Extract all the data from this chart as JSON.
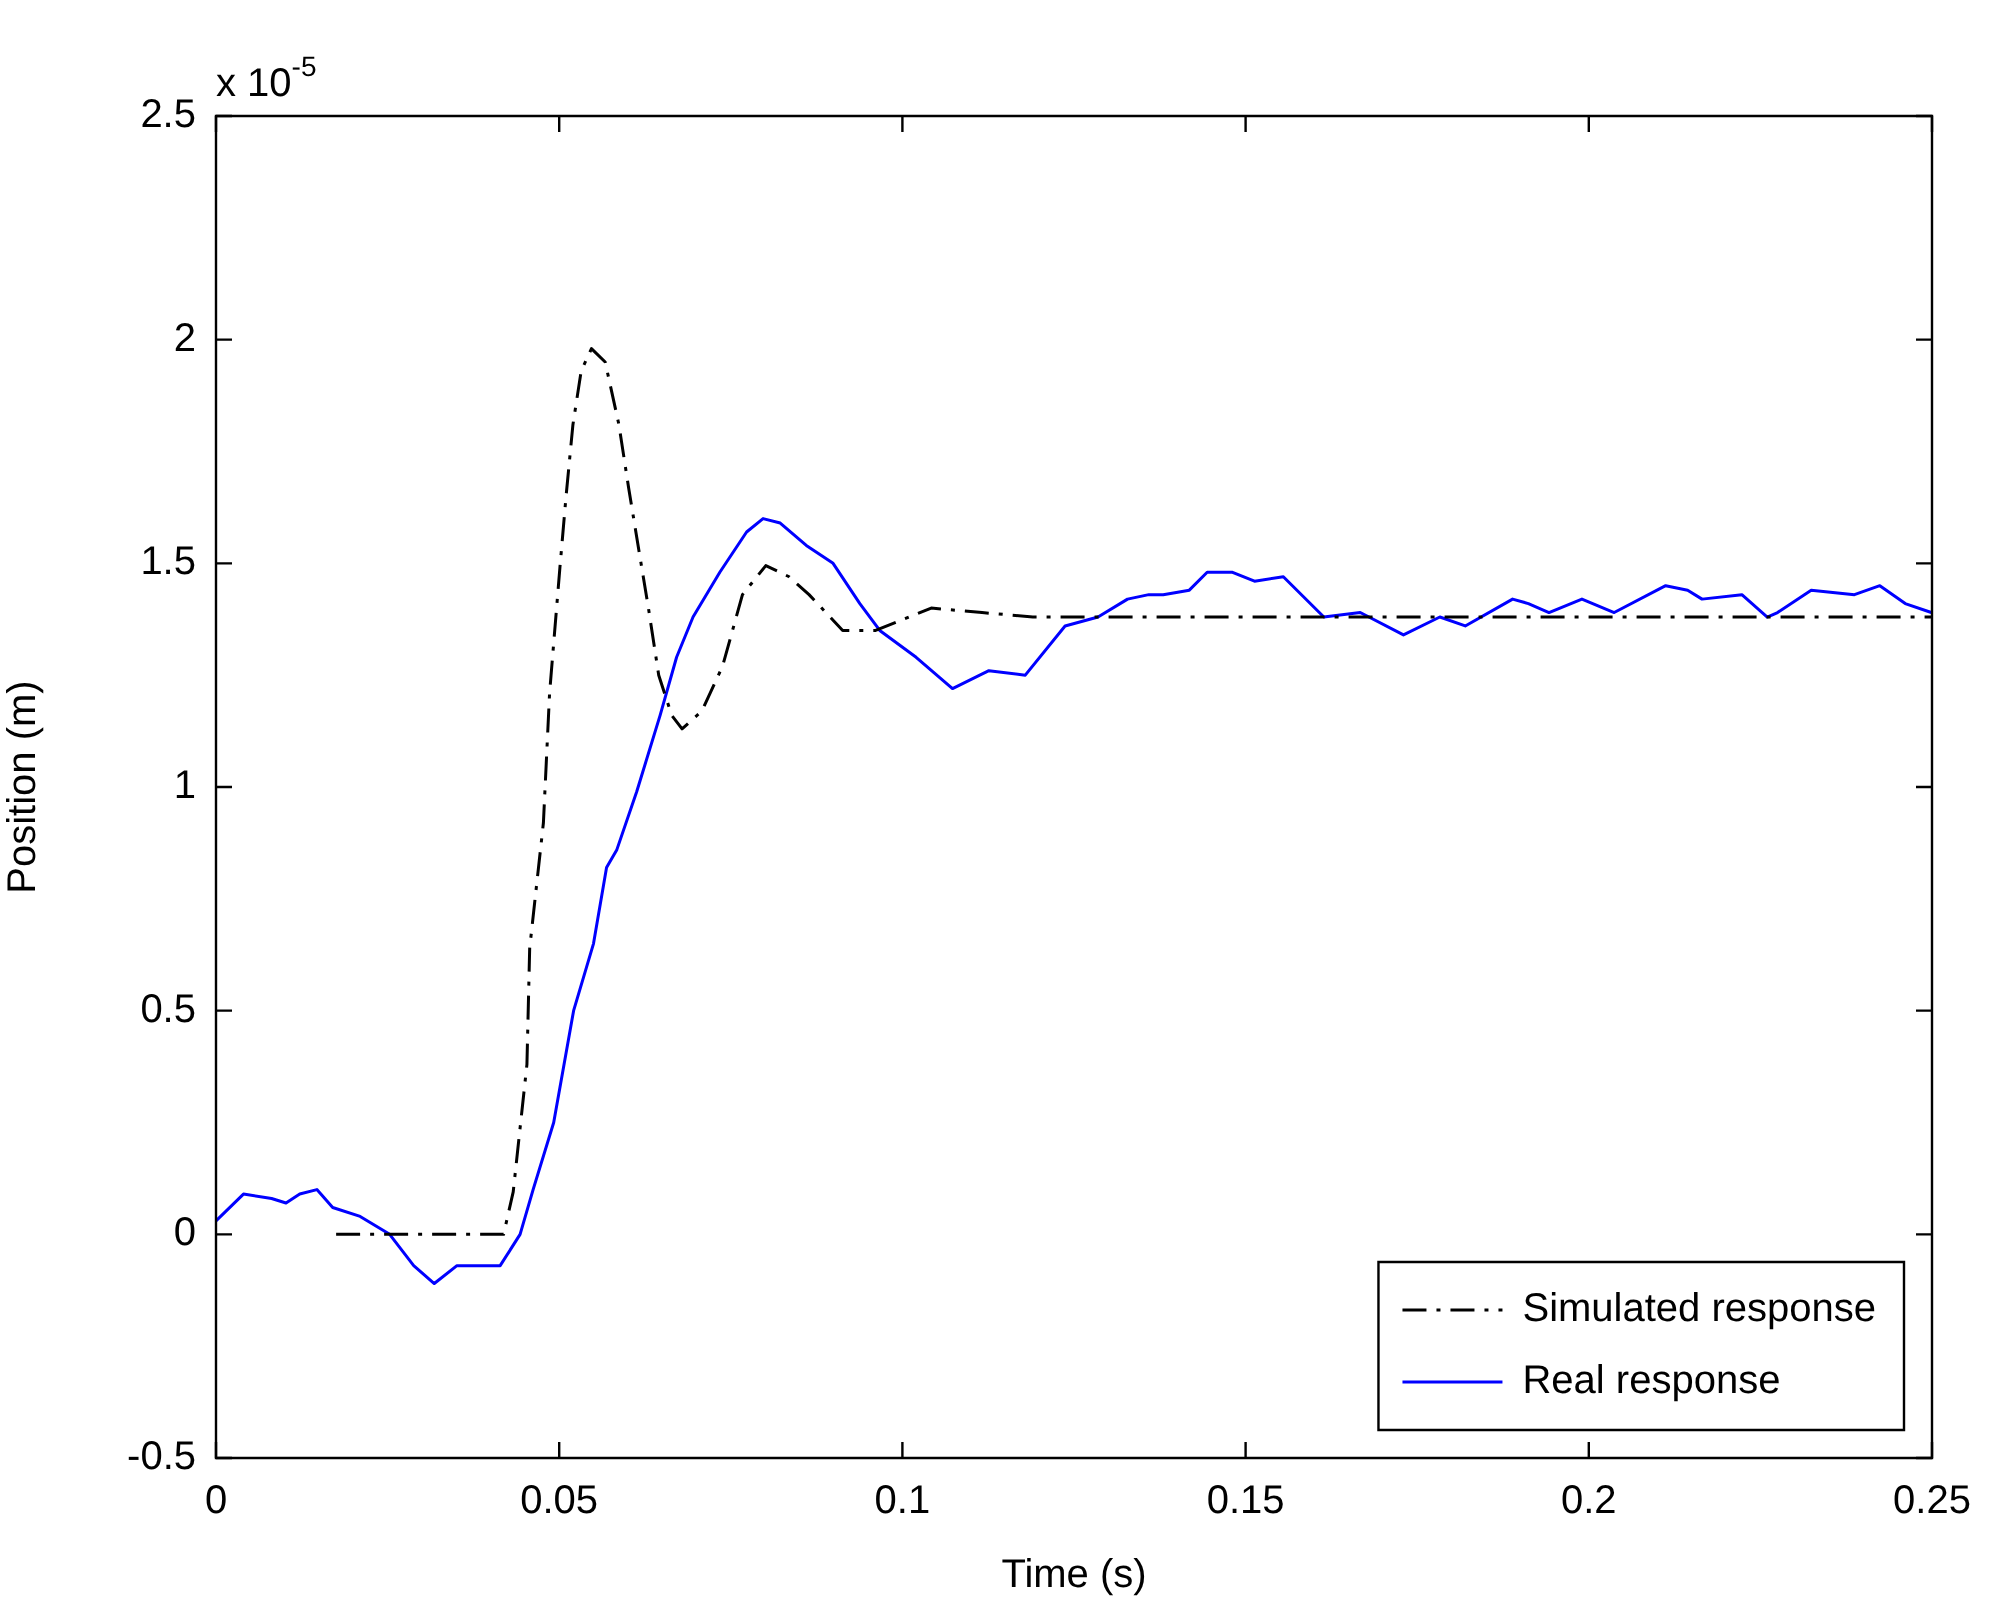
{
  "chart_data": {
    "type": "line",
    "xlabel": "Time (s)",
    "ylabel": "Position (m)",
    "annotations": [
      "x 10$^{-5}$"
    ],
    "xlim": [
      0,
      0.25
    ],
    "xticks": [
      0,
      0.05,
      0.1,
      0.15,
      0.2,
      0.25
    ],
    "ylim": [
      -0.5,
      2.5
    ],
    "yticks": [
      -0.5,
      0,
      0.5,
      1,
      1.5,
      2,
      2.5
    ],
    "grid": false,
    "legend": "bottom right",
    "marker": "none",
    "series": [
      {
        "name": "Simulated response",
        "color": "#000000",
        "line_style": "dashed",
        "x": [
          0.0175,
          0.0419,
          0.0433,
          0.0453,
          0.0457,
          0.0477,
          0.0486,
          0.0501,
          0.051,
          0.052,
          0.0532,
          0.0547,
          0.0567,
          0.0587,
          0.0601,
          0.0616,
          0.063,
          0.0645,
          0.0664,
          0.0679,
          0.0708,
          0.0738,
          0.0767,
          0.0801,
          0.0835,
          0.0864,
          0.0913,
          0.0961,
          0.1042,
          0.1116,
          0.119,
          0.15,
          0.2,
          0.25
        ],
        "values": [
          0,
          0,
          0.095,
          0.38,
          0.64,
          0.92,
          1.21,
          1.49,
          1.65,
          1.81,
          1.93,
          1.98,
          1.95,
          1.81,
          1.67,
          1.53,
          1.4,
          1.25,
          1.16,
          1.13,
          1.17,
          1.27,
          1.43,
          1.495,
          1.47,
          1.43,
          1.35,
          1.35,
          1.4,
          1.39,
          1.38,
          1.38,
          1.38,
          1.38
        ]
      },
      {
        "name": "Real response",
        "color": "#0000ff",
        "line_style": "solid",
        "x": [
          0,
          0.004,
          0.0081,
          0.0102,
          0.0122,
          0.0147,
          0.017,
          0.021,
          0.0253,
          0.0288,
          0.0318,
          0.0351,
          0.0414,
          0.0443,
          0.0462,
          0.0492,
          0.0521,
          0.055,
          0.0569,
          0.0584,
          0.0613,
          0.0647,
          0.0671,
          0.0695,
          0.0734,
          0.0773,
          0.0797,
          0.0822,
          0.086,
          0.0899,
          0.0938,
          0.0967,
          0.102,
          0.1073,
          0.1126,
          0.1179,
          0.1237,
          0.1285,
          0.1328,
          0.1359,
          0.138,
          0.1418,
          0.1444,
          0.1481,
          0.1513,
          0.1555,
          0.1614,
          0.1667,
          0.173,
          0.1783,
          0.182,
          0.1889,
          0.1912,
          0.1942,
          0.199,
          0.2037,
          0.2112,
          0.2144,
          0.2165,
          0.2223,
          0.226,
          0.2275,
          0.2324,
          0.2387,
          0.2424,
          0.2461,
          0.2499
        ],
        "values": [
          0.03,
          0.09,
          0.08,
          0.07,
          0.09,
          0.1,
          0.06,
          0.04,
          0,
          -0.07,
          -0.11,
          -0.07,
          -0.07,
          0,
          0.1,
          0.25,
          0.5,
          0.65,
          0.82,
          0.86,
          0.99,
          1.16,
          1.29,
          1.38,
          1.48,
          1.57,
          1.6,
          1.59,
          1.54,
          1.5,
          1.41,
          1.35,
          1.29,
          1.22,
          1.26,
          1.25,
          1.36,
          1.38,
          1.42,
          1.43,
          1.43,
          1.44,
          1.48,
          1.48,
          1.46,
          1.47,
          1.38,
          1.39,
          1.34,
          1.38,
          1.36,
          1.42,
          1.41,
          1.39,
          1.42,
          1.39,
          1.45,
          1.44,
          1.42,
          1.43,
          1.38,
          1.39,
          1.44,
          1.43,
          1.45,
          1.41,
          1.39
        ]
      }
    ]
  }
}
